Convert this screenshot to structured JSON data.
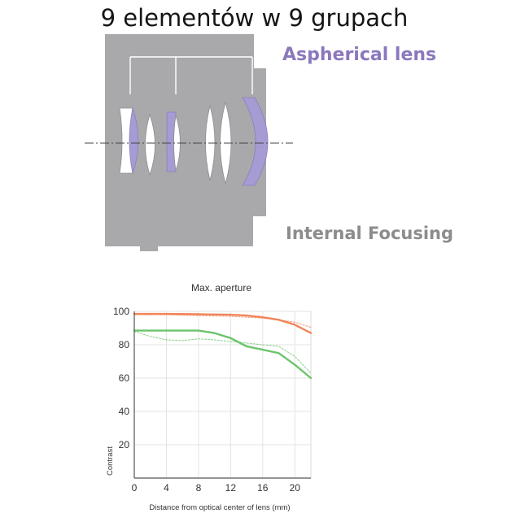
{
  "title": "9 elementów w 9 grupach",
  "diagram": {
    "aspherical_label": "Aspherical lens",
    "internal_focusing_label": "Internal Focusing",
    "colors": {
      "barrel": "#a9a9ab",
      "aspherical": "#a79bd3",
      "lens_glass": "#ffffff",
      "label_purple": "#8b78bd",
      "label_gray": "#8c8c8c"
    }
  },
  "chart_data": {
    "type": "line",
    "title": "Max. aperture",
    "xlabel": "Distance from optical center of lens (mm)",
    "ylabel": "Contrast",
    "xlim": [
      0,
      22
    ],
    "ylim": [
      0,
      100
    ],
    "x_ticks": [
      0,
      4,
      8,
      12,
      16,
      20
    ],
    "y_ticks": [
      20,
      40,
      60,
      80,
      100
    ],
    "grid": true,
    "series": [
      {
        "color": "#f0855a",
        "style": "solid",
        "points": [
          [
            0,
            98.5
          ],
          [
            4,
            98.5
          ],
          [
            8,
            98.3
          ],
          [
            12,
            98
          ],
          [
            14,
            97.5
          ],
          [
            16,
            96.5
          ],
          [
            18,
            95
          ],
          [
            20,
            92
          ],
          [
            22,
            87
          ]
        ]
      },
      {
        "color": "#f0855a",
        "style": "dashed",
        "points": [
          [
            0,
            98
          ],
          [
            4,
            98
          ],
          [
            8,
            97.5
          ],
          [
            12,
            97
          ],
          [
            14,
            96.5
          ],
          [
            16,
            96
          ],
          [
            18,
            95
          ],
          [
            20,
            93.5
          ],
          [
            22,
            90.5
          ]
        ]
      },
      {
        "color": "#6cc46c",
        "style": "solid",
        "points": [
          [
            0,
            88.5
          ],
          [
            4,
            88.5
          ],
          [
            8,
            88.5
          ],
          [
            10,
            87
          ],
          [
            12,
            84
          ],
          [
            14,
            79
          ],
          [
            16,
            77
          ],
          [
            18,
            75
          ],
          [
            20,
            68
          ],
          [
            22,
            60
          ]
        ]
      },
      {
        "color": "#6cc46c",
        "style": "dashed",
        "points": [
          [
            0,
            88
          ],
          [
            2,
            85
          ],
          [
            4,
            83
          ],
          [
            6,
            82.5
          ],
          [
            8,
            83.5
          ],
          [
            10,
            83
          ],
          [
            12,
            82
          ],
          [
            14,
            81
          ],
          [
            16,
            80
          ],
          [
            18,
            79
          ],
          [
            20,
            73
          ],
          [
            22,
            63
          ]
        ]
      }
    ]
  }
}
